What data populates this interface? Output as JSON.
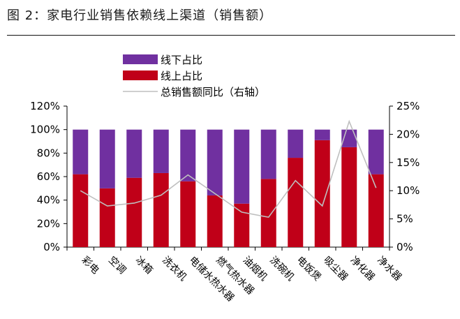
{
  "title": "图 2：家电行业销售依赖线上渠道（销售额）",
  "chart_data": {
    "type": "bar",
    "stacked": true,
    "categories": [
      "彩电",
      "空调",
      "冰箱",
      "洗衣机",
      "电储水热水器",
      "燃气热水器",
      "油烟机",
      "洗碗机",
      "电饭煲",
      "吸尘器",
      "净化器",
      "净水器"
    ],
    "series": [
      {
        "name": "线上占比",
        "color": "#C00018",
        "values": [
          62,
          50,
          59,
          63,
          56,
          44,
          37,
          58,
          76,
          91,
          85,
          62
        ]
      },
      {
        "name": "线下占比",
        "color": "#7030A0",
        "values": [
          38,
          50,
          41,
          37,
          44,
          56,
          63,
          42,
          24,
          9,
          15,
          38
        ]
      }
    ],
    "line": {
      "name": "总销售额同比（右轴）",
      "color": "#BFBFBF",
      "axis": "right",
      "values": [
        10.0,
        7.3,
        7.8,
        9.2,
        12.8,
        9.5,
        6.2,
        5.3,
        11.8,
        7.3,
        22.3,
        10.5
      ]
    },
    "left_axis": {
      "min": 0,
      "max": 120,
      "ticks": [
        "0%",
        "20%",
        "40%",
        "60%",
        "80%",
        "100%",
        "120%"
      ]
    },
    "right_axis": {
      "min": 0,
      "max": 25,
      "ticks": [
        "0%",
        "5%",
        "10%",
        "15%",
        "20%",
        "25%"
      ]
    },
    "legend": {
      "position": "top",
      "order": [
        "线下占比",
        "线上占比",
        "总销售额同比（右轴）"
      ]
    },
    "grid": false
  }
}
